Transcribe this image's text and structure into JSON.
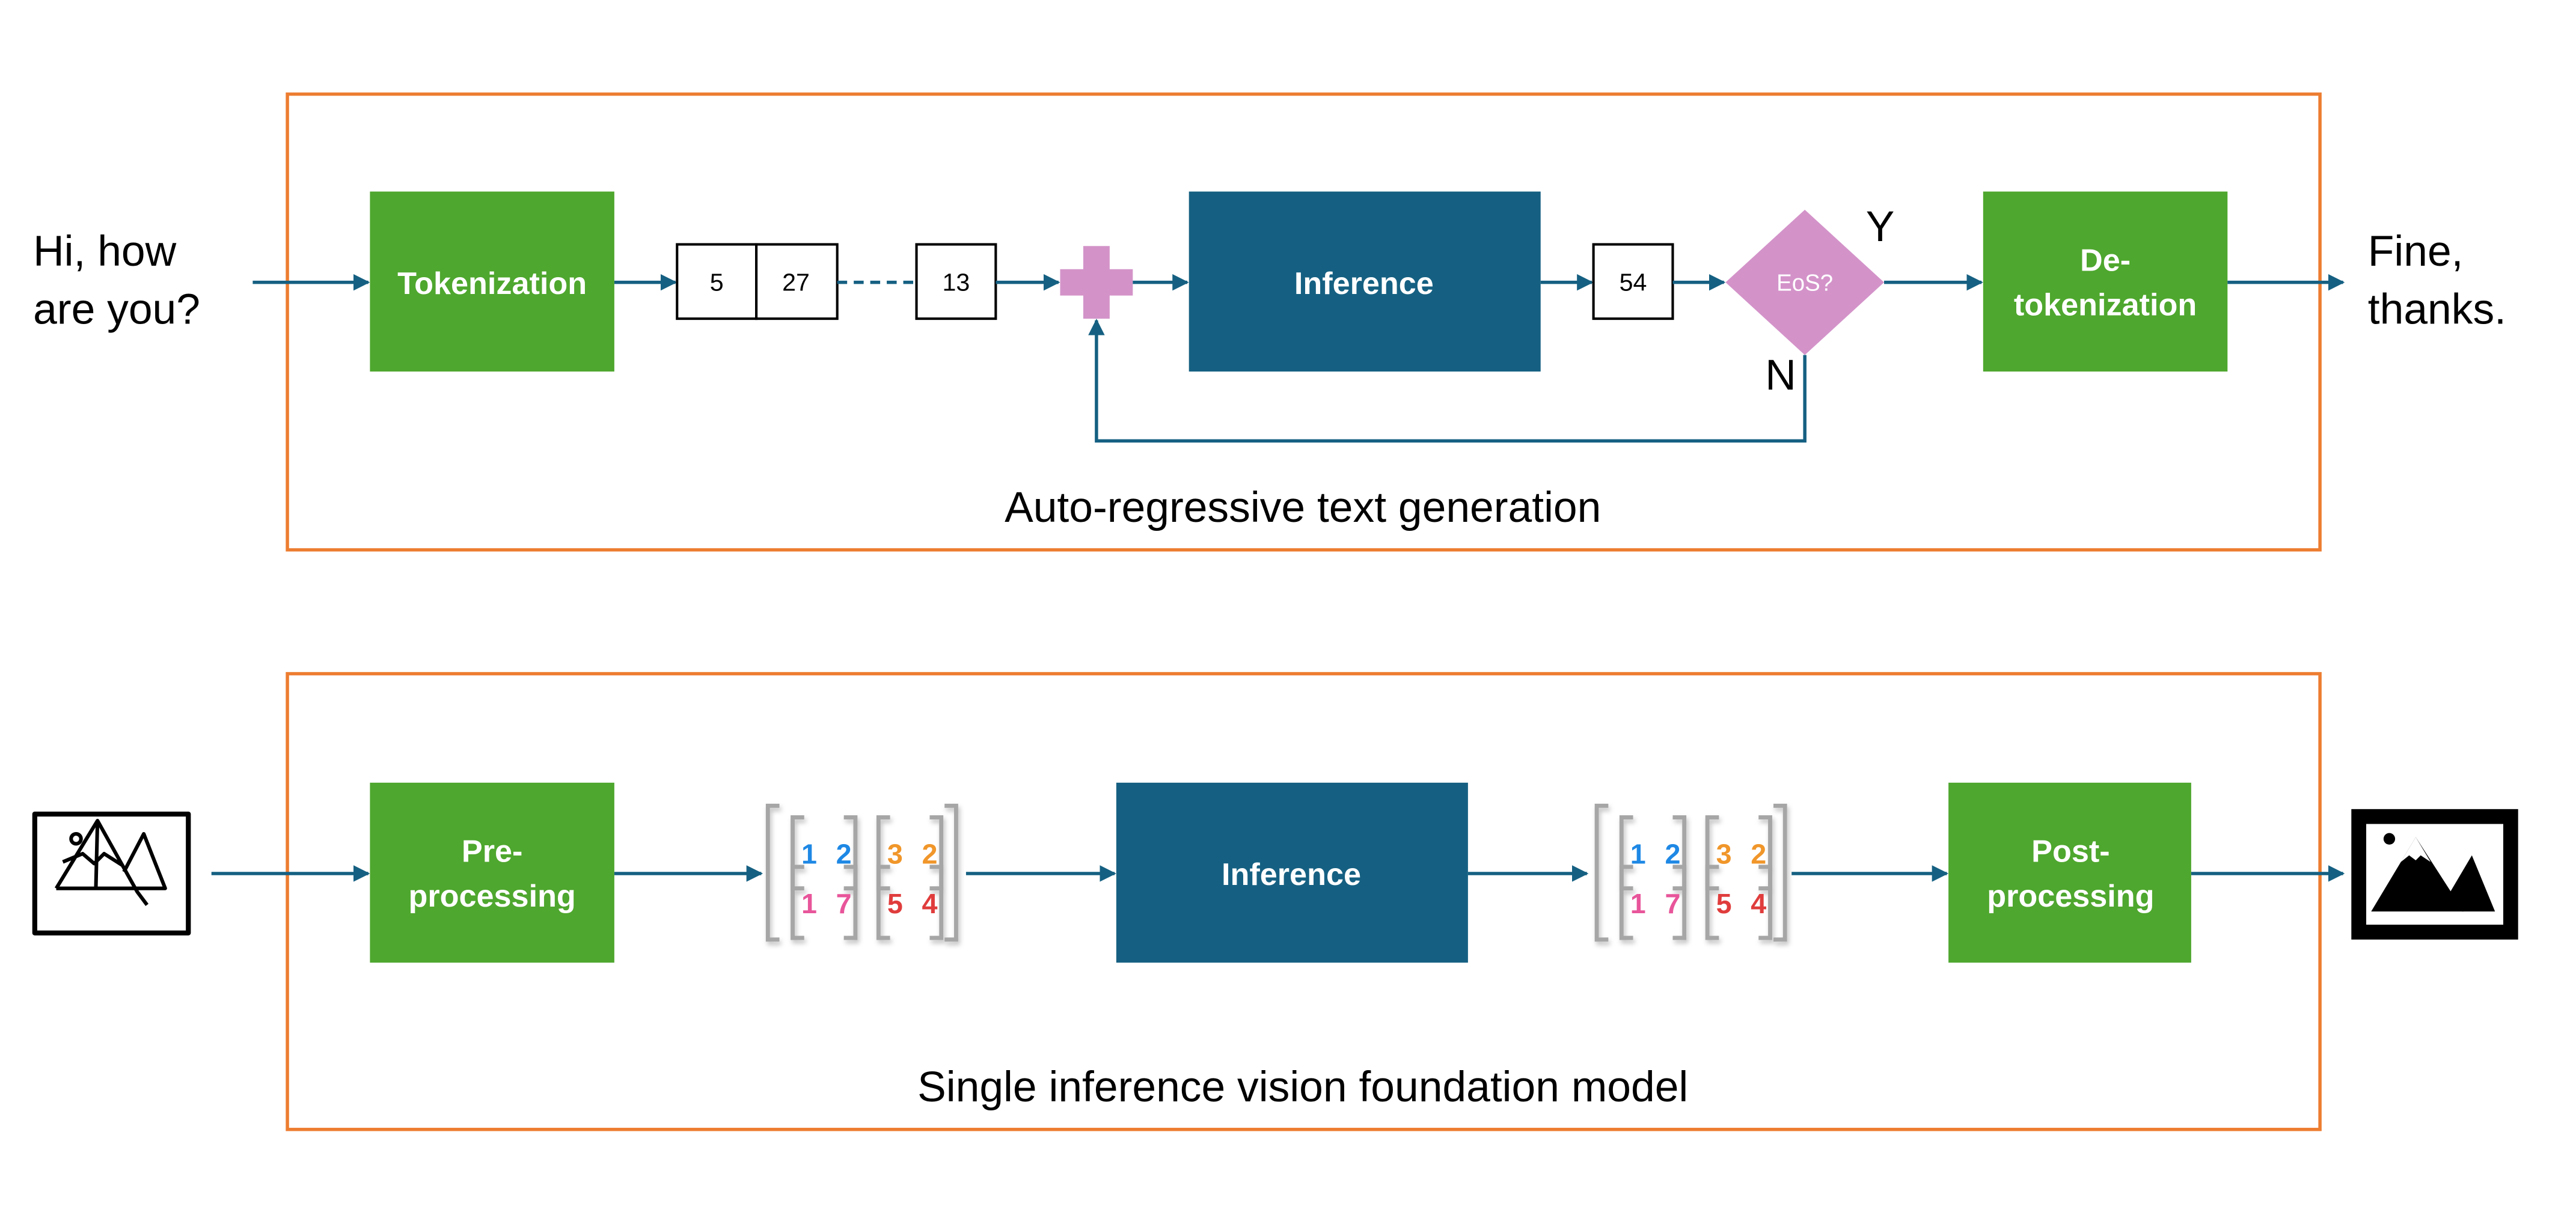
{
  "colors": {
    "frame": "#ED7D31",
    "green": "#4EA72E",
    "inference": "#156082",
    "pink": "#D393C9",
    "arrow": "#156082"
  },
  "top": {
    "input_text": [
      "Hi, how",
      "are you?"
    ],
    "tokenization": "Tokenization",
    "tokens": [
      "5",
      "27",
      "13"
    ],
    "plus_icon": "plus-icon",
    "inference": "Inference",
    "next_token": "54",
    "decision": "EoS?",
    "yes": "Y",
    "no": "N",
    "detokenization": [
      "De-",
      "tokenization"
    ],
    "output_text": [
      "Fine,",
      "thanks."
    ],
    "caption": "Auto-regressive text generation"
  },
  "bottom": {
    "input_icon": "image-outline-icon",
    "preprocessing": [
      "Pre-",
      "processing"
    ],
    "matrix": {
      "rows": [
        [
          "1",
          "2",
          "3",
          "2"
        ],
        [
          "1",
          "7",
          "5",
          "4"
        ]
      ],
      "colors": [
        [
          "#1E88E5",
          "#1E88E5",
          "#F0962A",
          "#F0962A"
        ],
        [
          "#E8559A",
          "#E8559A",
          "#E03C3C",
          "#E03C3C"
        ]
      ]
    },
    "inference": "Inference",
    "postprocessing": [
      "Post-",
      "processing"
    ],
    "output_icon": "image-filled-icon",
    "caption": "Single inference vision foundation model"
  }
}
